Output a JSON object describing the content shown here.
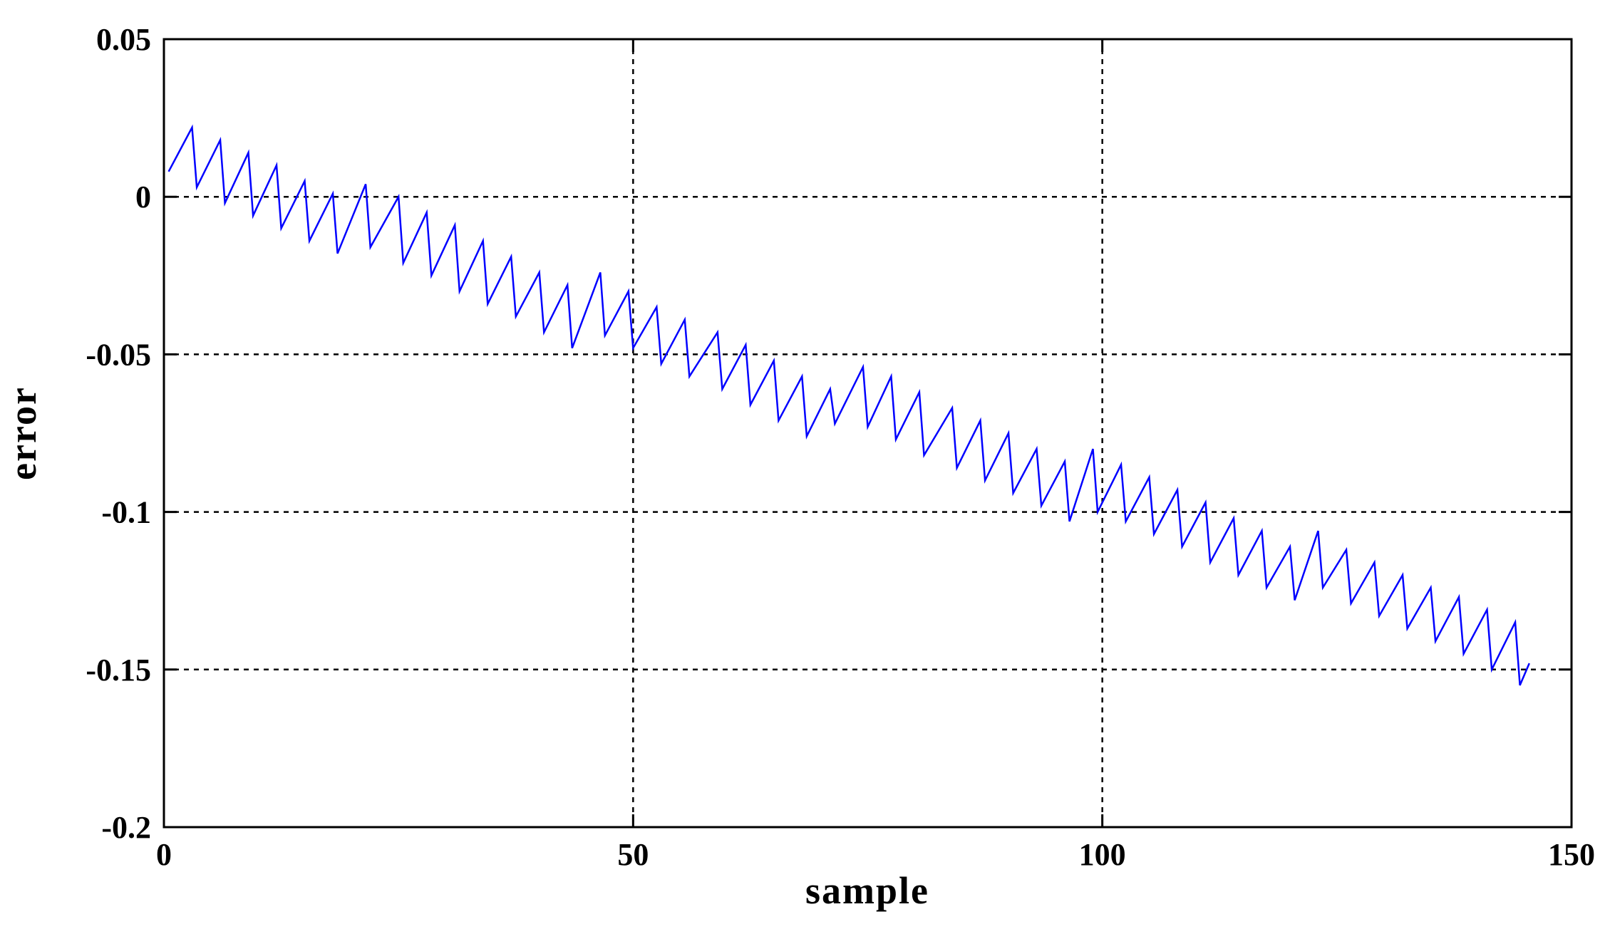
{
  "chart_data": {
    "type": "line",
    "title": "",
    "xlabel": "sample",
    "ylabel": "error",
    "xlim": [
      0,
      150
    ],
    "ylim": [
      -0.2,
      0.05
    ],
    "grid": true,
    "grid_style": "dashed",
    "xticks": [
      0,
      50,
      100,
      150
    ],
    "xtick_labels": [
      "0",
      "50",
      "100",
      "150"
    ],
    "yticks": [
      0.05,
      0,
      -0.05,
      -0.1,
      -0.15,
      -0.2
    ],
    "ytick_labels": [
      "0.05",
      "0",
      "-0.05",
      "-0.1",
      "-0.15",
      "-0.2"
    ],
    "series": [
      {
        "color": "#0000ff",
        "x": [
          0.5,
          3,
          3.5,
          6,
          6.5,
          9,
          9.5,
          12,
          12.5,
          15,
          15.5,
          18,
          18.5,
          21.5,
          22,
          25,
          25.5,
          28,
          28.5,
          31,
          31.5,
          34,
          34.5,
          37,
          37.5,
          40,
          40.5,
          43,
          43.5,
          46.5,
          47,
          49.5,
          50,
          52.5,
          53,
          55.5,
          56,
          59,
          59.5,
          62,
          62.5,
          65,
          65.5,
          68,
          68.5,
          71,
          71.5,
          74.5,
          75,
          77.5,
          78,
          80.5,
          81,
          84,
          84.5,
          87,
          87.5,
          90,
          90.5,
          93,
          93.5,
          96,
          96.5,
          99,
          99.5,
          102,
          102.5,
          105,
          105.5,
          108,
          108.5,
          111,
          111.5,
          114,
          114.5,
          117,
          117.5,
          120,
          120.5,
          123,
          123.5,
          126,
          126.5,
          129,
          129.5,
          132,
          132.5,
          135,
          135.5,
          138,
          138.5,
          141,
          141.5,
          144,
          144.5,
          145.5
        ],
        "y": [
          0.008,
          0.022,
          0.003,
          0.018,
          -0.002,
          0.014,
          -0.006,
          0.01,
          -0.01,
          0.005,
          -0.014,
          0.001,
          -0.018,
          0.004,
          -0.016,
          0.0,
          -0.021,
          -0.005,
          -0.025,
          -0.009,
          -0.03,
          -0.014,
          -0.034,
          -0.019,
          -0.038,
          -0.024,
          -0.043,
          -0.028,
          -0.048,
          -0.024,
          -0.044,
          -0.03,
          -0.048,
          -0.035,
          -0.053,
          -0.039,
          -0.057,
          -0.043,
          -0.061,
          -0.047,
          -0.066,
          -0.052,
          -0.071,
          -0.057,
          -0.076,
          -0.061,
          -0.072,
          -0.054,
          -0.073,
          -0.057,
          -0.077,
          -0.062,
          -0.082,
          -0.067,
          -0.086,
          -0.071,
          -0.09,
          -0.075,
          -0.094,
          -0.08,
          -0.098,
          -0.084,
          -0.103,
          -0.08,
          -0.1,
          -0.085,
          -0.103,
          -0.089,
          -0.107,
          -0.093,
          -0.111,
          -0.097,
          -0.116,
          -0.102,
          -0.12,
          -0.106,
          -0.124,
          -0.111,
          -0.128,
          -0.106,
          -0.124,
          -0.112,
          -0.129,
          -0.116,
          -0.133,
          -0.12,
          -0.137,
          -0.124,
          -0.141,
          -0.127,
          -0.145,
          -0.131,
          -0.15,
          -0.135,
          -0.155,
          -0.148
        ]
      }
    ]
  }
}
